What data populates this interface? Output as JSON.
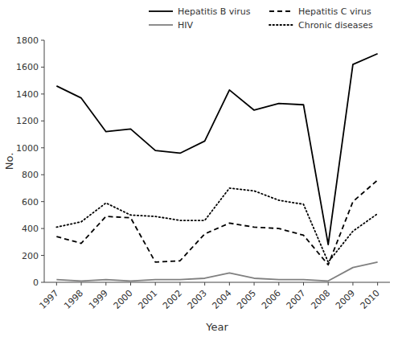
{
  "chart_data": {
    "type": "line",
    "x_label": "Year",
    "y_label": "No.",
    "x": [
      1997,
      1998,
      1999,
      2000,
      2001,
      2002,
      2003,
      2004,
      2005,
      2006,
      2007,
      2008,
      2009,
      2010
    ],
    "series": [
      {
        "name": "Hepatitis B virus",
        "color": "#000000",
        "line_style": "solid",
        "values": [
          1460,
          1370,
          1120,
          1140,
          980,
          960,
          1050,
          1430,
          1280,
          1330,
          1320,
          280,
          1620,
          1700
        ]
      },
      {
        "name": "Hepatitis C virus",
        "color": "#000000",
        "line_style": "dashed",
        "values": [
          340,
          290,
          490,
          480,
          150,
          160,
          360,
          440,
          410,
          400,
          350,
          130,
          600,
          760
        ]
      },
      {
        "name": "HIV",
        "color": "#808080",
        "line_style": "solid",
        "values": [
          20,
          10,
          20,
          10,
          20,
          20,
          30,
          70,
          30,
          20,
          20,
          10,
          110,
          150
        ]
      },
      {
        "name": "Chronic diseases",
        "color": "#000000",
        "line_style": "dotted",
        "values": [
          410,
          450,
          590,
          500,
          490,
          460,
          460,
          700,
          680,
          610,
          580,
          150,
          380,
          510
        ]
      }
    ],
    "xlim": [
      1996.5,
      2010.5
    ],
    "xticks": [
      1997,
      1998,
      1999,
      2000,
      2001,
      2002,
      2003,
      2004,
      2005,
      2006,
      2007,
      2008,
      2009,
      2010
    ],
    "ylim": [
      0,
      1800
    ],
    "yticks": [
      0,
      200,
      400,
      600,
      800,
      1000,
      1200,
      1400,
      1600,
      1800
    ],
    "grid": false,
    "legend": "upper right"
  }
}
